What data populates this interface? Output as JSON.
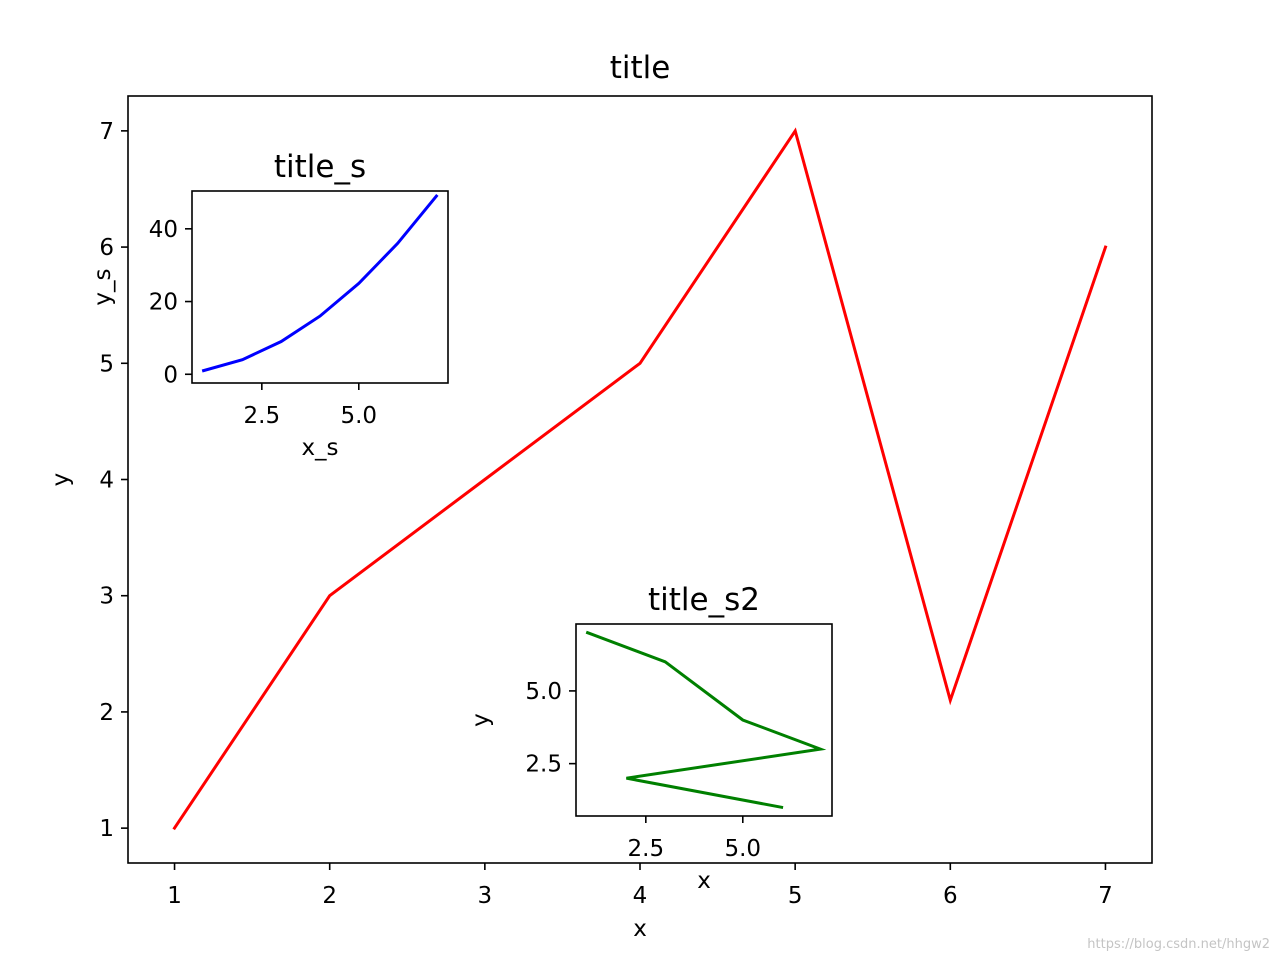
{
  "watermark": "https://blog.csdn.net/hhgw2",
  "chart_data": [
    {
      "type": "line",
      "title": "title",
      "xlabel": "x",
      "ylabel": "y",
      "xlim": [
        0.7,
        7.3
      ],
      "ylim": [
        0.7,
        7.3
      ],
      "xticks": [
        1,
        2,
        3,
        4,
        5,
        6,
        7
      ],
      "yticks": [
        1,
        2,
        3,
        4,
        5,
        6,
        7
      ],
      "grid": false,
      "series": [
        {
          "color": "#ff0000",
          "x": [
            1,
            2,
            3,
            4,
            5,
            6,
            7
          ],
          "y": [
            1,
            3,
            4,
            5,
            7,
            2.1,
            6
          ]
        }
      ]
    },
    {
      "type": "line",
      "title": "title_s",
      "xlabel": "x_s",
      "ylabel": "y_s",
      "xlim": [
        0.7,
        7.3
      ],
      "ylim": [
        -2.4,
        50.4
      ],
      "xticks": [
        2.5,
        5.0
      ],
      "xtick_labels": [
        "2.5",
        "5.0"
      ],
      "yticks": [
        0,
        20,
        40
      ],
      "grid": false,
      "series": [
        {
          "color": "#0000ff",
          "x": [
            1,
            2,
            3,
            4,
            5,
            6,
            7
          ],
          "y": [
            1,
            4,
            9,
            16,
            25,
            36,
            49
          ]
        }
      ]
    },
    {
      "type": "line",
      "title": "title_s2",
      "xlabel": "x",
      "ylabel": "y",
      "xlim": [
        0.7,
        7.3
      ],
      "ylim": [
        0.7,
        7.3
      ],
      "xticks": [
        2.5,
        5.0
      ],
      "xtick_labels": [
        "2.5",
        "5.0"
      ],
      "yticks": [
        2.5,
        5.0
      ],
      "ytick_labels": [
        "2.5",
        "5.0"
      ],
      "grid": false,
      "series": [
        {
          "color": "#008000",
          "x": [
            1,
            3,
            5,
            7,
            2,
            6
          ],
          "y": [
            7,
            6,
            4,
            3,
            2,
            1
          ]
        }
      ]
    }
  ]
}
